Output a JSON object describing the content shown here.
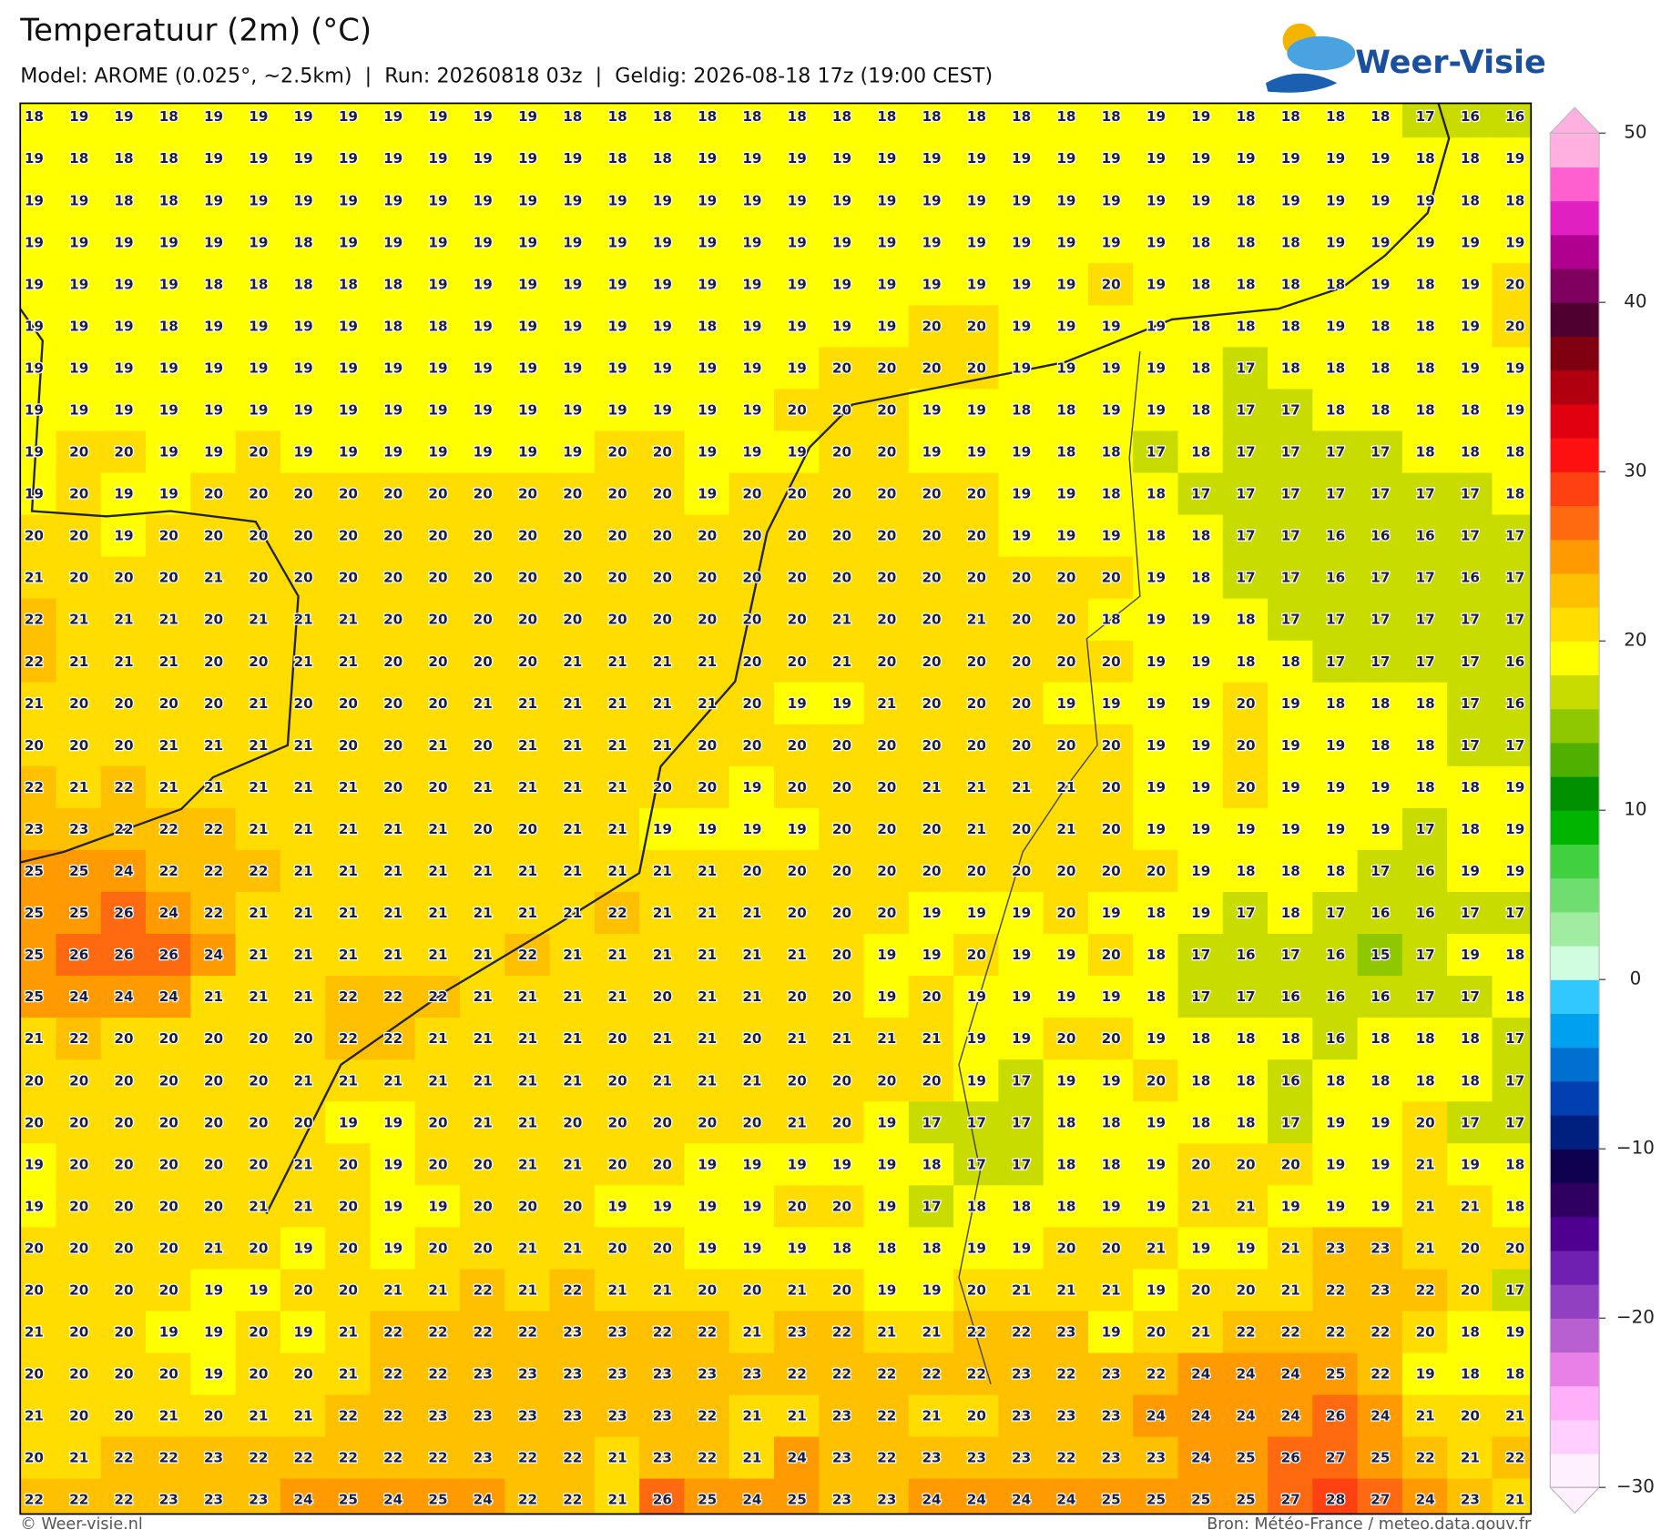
{
  "header": {
    "title": "Temperatuur (2m) (°C)",
    "subtitle": "Model: AROME (0.025°, ~2.5km)  |  Run: 20260818 03z  |  Geldig: 2026-08-18 17z (19:00 CEST)",
    "logo": "Weer-Visie"
  },
  "map": {
    "grid": [
      [
        18,
        19,
        19,
        18,
        19,
        19,
        19,
        19,
        19,
        19,
        19,
        19,
        18,
        18,
        18,
        18,
        18,
        18,
        18,
        18,
        18,
        18,
        18,
        18,
        18,
        19,
        19,
        18,
        18,
        18,
        18,
        17,
        16,
        16
      ],
      [
        19,
        18,
        18,
        18,
        19,
        19,
        19,
        19,
        19,
        19,
        19,
        19,
        19,
        18,
        18,
        19,
        19,
        19,
        19,
        19,
        19,
        19,
        19,
        19,
        19,
        19,
        19,
        19,
        19,
        19,
        19,
        18,
        18,
        19
      ],
      [
        19,
        19,
        18,
        18,
        19,
        19,
        19,
        19,
        19,
        19,
        19,
        19,
        19,
        19,
        19,
        19,
        19,
        19,
        19,
        19,
        19,
        19,
        19,
        19,
        19,
        19,
        19,
        18,
        19,
        19,
        19,
        19,
        18,
        18
      ],
      [
        19,
        19,
        19,
        19,
        19,
        19,
        18,
        19,
        19,
        19,
        19,
        19,
        19,
        19,
        19,
        19,
        19,
        19,
        19,
        19,
        19,
        19,
        19,
        19,
        19,
        19,
        18,
        18,
        18,
        19,
        19,
        19,
        19,
        19
      ],
      [
        19,
        19,
        19,
        19,
        18,
        18,
        18,
        18,
        18,
        19,
        19,
        19,
        19,
        19,
        19,
        19,
        19,
        19,
        19,
        19,
        19,
        19,
        19,
        19,
        20,
        19,
        18,
        18,
        18,
        18,
        19,
        18,
        19,
        20
      ],
      [
        19,
        19,
        19,
        18,
        19,
        19,
        19,
        19,
        18,
        18,
        19,
        19,
        19,
        19,
        19,
        18,
        19,
        19,
        19,
        19,
        20,
        20,
        19,
        19,
        19,
        19,
        18,
        18,
        18,
        19,
        18,
        18,
        19,
        20
      ],
      [
        19,
        19,
        19,
        19,
        19,
        19,
        19,
        19,
        19,
        19,
        19,
        19,
        19,
        19,
        19,
        19,
        19,
        19,
        20,
        20,
        20,
        20,
        19,
        19,
        19,
        19,
        18,
        17,
        18,
        18,
        18,
        18,
        19,
        19
      ],
      [
        19,
        19,
        19,
        19,
        19,
        19,
        19,
        19,
        19,
        19,
        19,
        19,
        19,
        19,
        19,
        19,
        19,
        20,
        20,
        20,
        19,
        19,
        18,
        18,
        19,
        19,
        18,
        17,
        17,
        18,
        18,
        18,
        18,
        19
      ],
      [
        19,
        20,
        20,
        19,
        19,
        20,
        19,
        19,
        19,
        19,
        19,
        19,
        19,
        20,
        20,
        19,
        19,
        19,
        20,
        20,
        19,
        19,
        19,
        18,
        18,
        17,
        18,
        17,
        17,
        17,
        17,
        18,
        18,
        18
      ],
      [
        19,
        20,
        19,
        19,
        20,
        20,
        20,
        20,
        20,
        20,
        20,
        20,
        20,
        20,
        20,
        19,
        20,
        20,
        20,
        20,
        20,
        20,
        19,
        19,
        18,
        18,
        17,
        17,
        17,
        17,
        17,
        17,
        17,
        18
      ],
      [
        20,
        20,
        19,
        20,
        20,
        20,
        20,
        20,
        20,
        20,
        20,
        20,
        20,
        20,
        20,
        20,
        20,
        20,
        20,
        20,
        20,
        20,
        19,
        19,
        19,
        18,
        18,
        17,
        17,
        16,
        16,
        16,
        17,
        17
      ],
      [
        21,
        20,
        20,
        20,
        21,
        20,
        20,
        20,
        20,
        20,
        20,
        20,
        20,
        20,
        20,
        20,
        20,
        20,
        20,
        20,
        20,
        20,
        20,
        20,
        20,
        19,
        18,
        17,
        17,
        16,
        17,
        17,
        16,
        17
      ],
      [
        22,
        21,
        21,
        21,
        20,
        21,
        21,
        21,
        20,
        20,
        20,
        20,
        20,
        20,
        20,
        20,
        20,
        20,
        21,
        20,
        20,
        21,
        20,
        20,
        18,
        19,
        19,
        18,
        17,
        17,
        17,
        17,
        17,
        17
      ],
      [
        22,
        21,
        21,
        21,
        20,
        20,
        21,
        21,
        20,
        20,
        20,
        20,
        21,
        21,
        21,
        21,
        20,
        20,
        21,
        20,
        20,
        20,
        20,
        20,
        20,
        19,
        19,
        18,
        18,
        17,
        17,
        17,
        17,
        16
      ],
      [
        21,
        20,
        20,
        20,
        20,
        21,
        20,
        20,
        20,
        20,
        21,
        21,
        21,
        21,
        21,
        21,
        20,
        19,
        19,
        21,
        20,
        20,
        20,
        19,
        19,
        19,
        19,
        20,
        19,
        18,
        18,
        18,
        17,
        16
      ],
      [
        20,
        20,
        20,
        21,
        21,
        21,
        21,
        20,
        20,
        21,
        20,
        21,
        21,
        21,
        21,
        20,
        20,
        20,
        20,
        20,
        20,
        20,
        20,
        20,
        20,
        19,
        19,
        20,
        19,
        19,
        18,
        18,
        17,
        17
      ],
      [
        22,
        21,
        22,
        21,
        21,
        21,
        21,
        21,
        20,
        20,
        21,
        21,
        21,
        21,
        20,
        20,
        19,
        20,
        20,
        20,
        21,
        21,
        21,
        21,
        20,
        19,
        19,
        20,
        19,
        19,
        19,
        18,
        18,
        19
      ],
      [
        23,
        23,
        22,
        22,
        22,
        21,
        21,
        21,
        21,
        21,
        20,
        20,
        21,
        21,
        19,
        19,
        19,
        19,
        20,
        20,
        20,
        21,
        20,
        21,
        20,
        19,
        19,
        19,
        19,
        19,
        19,
        17,
        18,
        19
      ],
      [
        25,
        25,
        24,
        22,
        22,
        22,
        21,
        21,
        21,
        21,
        21,
        21,
        21,
        21,
        21,
        21,
        20,
        20,
        20,
        20,
        20,
        20,
        20,
        20,
        20,
        20,
        19,
        18,
        18,
        18,
        17,
        16,
        19,
        19
      ],
      [
        25,
        25,
        26,
        24,
        22,
        21,
        21,
        21,
        21,
        21,
        21,
        21,
        21,
        22,
        21,
        21,
        21,
        20,
        20,
        20,
        19,
        19,
        19,
        20,
        19,
        18,
        19,
        17,
        18,
        17,
        16,
        16,
        17,
        17
      ],
      [
        25,
        26,
        26,
        26,
        24,
        21,
        21,
        21,
        21,
        21,
        21,
        22,
        21,
        21,
        21,
        21,
        21,
        21,
        20,
        19,
        19,
        20,
        19,
        19,
        20,
        18,
        17,
        16,
        17,
        16,
        15,
        17,
        19,
        18
      ],
      [
        25,
        24,
        24,
        24,
        21,
        21,
        21,
        22,
        22,
        22,
        21,
        21,
        21,
        21,
        20,
        21,
        21,
        20,
        20,
        19,
        20,
        19,
        19,
        19,
        19,
        18,
        17,
        17,
        16,
        16,
        16,
        17,
        17,
        18
      ],
      [
        21,
        22,
        20,
        20,
        20,
        20,
        20,
        22,
        22,
        21,
        21,
        21,
        21,
        20,
        21,
        21,
        20,
        21,
        21,
        21,
        21,
        19,
        19,
        20,
        20,
        19,
        18,
        18,
        18,
        16,
        18,
        18,
        18,
        17
      ],
      [
        20,
        20,
        20,
        20,
        20,
        20,
        21,
        21,
        21,
        21,
        21,
        21,
        21,
        20,
        21,
        21,
        21,
        20,
        20,
        20,
        20,
        19,
        17,
        19,
        19,
        20,
        18,
        18,
        16,
        18,
        18,
        18,
        18,
        17
      ],
      [
        20,
        20,
        20,
        20,
        20,
        20,
        20,
        19,
        19,
        20,
        21,
        21,
        20,
        20,
        20,
        20,
        20,
        21,
        20,
        19,
        17,
        17,
        17,
        18,
        18,
        19,
        18,
        18,
        17,
        19,
        19,
        20,
        17,
        17
      ],
      [
        19,
        20,
        20,
        20,
        20,
        20,
        21,
        20,
        19,
        20,
        20,
        21,
        21,
        20,
        20,
        19,
        19,
        19,
        19,
        19,
        18,
        17,
        17,
        18,
        18,
        19,
        20,
        20,
        20,
        19,
        19,
        21,
        19,
        18
      ],
      [
        19,
        20,
        20,
        20,
        20,
        21,
        21,
        20,
        19,
        19,
        20,
        20,
        20,
        19,
        19,
        19,
        19,
        20,
        20,
        19,
        17,
        18,
        18,
        18,
        19,
        19,
        21,
        21,
        19,
        19,
        19,
        21,
        21,
        18
      ],
      [
        20,
        20,
        20,
        20,
        21,
        20,
        19,
        20,
        19,
        20,
        20,
        21,
        21,
        20,
        20,
        19,
        19,
        19,
        18,
        18,
        18,
        19,
        19,
        20,
        20,
        21,
        19,
        19,
        21,
        23,
        23,
        21,
        20,
        20
      ],
      [
        20,
        20,
        20,
        20,
        19,
        19,
        20,
        20,
        21,
        21,
        22,
        21,
        22,
        21,
        21,
        20,
        20,
        21,
        20,
        19,
        19,
        20,
        21,
        21,
        21,
        19,
        20,
        20,
        21,
        22,
        23,
        22,
        20,
        17
      ],
      [
        21,
        20,
        20,
        19,
        19,
        20,
        19,
        21,
        22,
        22,
        22,
        22,
        23,
        23,
        22,
        22,
        21,
        23,
        22,
        21,
        21,
        22,
        22,
        23,
        19,
        20,
        21,
        22,
        22,
        22,
        22,
        20,
        18,
        19
      ],
      [
        20,
        20,
        20,
        20,
        19,
        20,
        20,
        21,
        22,
        22,
        23,
        23,
        23,
        23,
        23,
        23,
        23,
        22,
        22,
        22,
        22,
        22,
        23,
        22,
        23,
        22,
        24,
        24,
        24,
        25,
        22,
        19,
        18,
        18
      ],
      [
        21,
        20,
        20,
        21,
        20,
        21,
        21,
        22,
        22,
        23,
        23,
        23,
        23,
        23,
        23,
        22,
        21,
        21,
        23,
        22,
        21,
        20,
        23,
        23,
        23,
        24,
        24,
        24,
        24,
        26,
        24,
        21,
        20,
        21
      ],
      [
        20,
        21,
        22,
        22,
        23,
        22,
        22,
        22,
        22,
        22,
        23,
        22,
        22,
        21,
        23,
        22,
        21,
        24,
        23,
        22,
        23,
        23,
        23,
        22,
        23,
        23,
        24,
        25,
        26,
        27,
        25,
        22,
        21,
        22
      ],
      [
        22,
        22,
        22,
        23,
        23,
        23,
        24,
        25,
        24,
        25,
        24,
        22,
        22,
        21,
        26,
        25,
        24,
        25,
        23,
        23,
        24,
        24,
        24,
        24,
        25,
        25,
        25,
        25,
        27,
        28,
        27,
        24,
        23,
        21
      ]
    ]
  },
  "colorbar": {
    "lim": [
      -30,
      50
    ],
    "ticks": [
      50,
      40,
      30,
      20,
      10,
      0,
      {
        "value": -10,
        "label": "−10"
      },
      {
        "value": -20,
        "label": "−20"
      },
      {
        "value": -30,
        "label": "−30"
      }
    ],
    "colors": [
      "#fff0ff",
      "#ffd0ff",
      "#ffb0f8",
      "#e880e8",
      "#b860d0",
      "#9040c0",
      "#7020b0",
      "#500090",
      "#300060",
      "#100050",
      "#002080",
      "#0040b0",
      "#0070d0",
      "#00a0f0",
      "#30c8ff",
      "#d0fce0",
      "#a0eca0",
      "#70dd70",
      "#40d040",
      "#00b400",
      "#009000",
      "#50b000",
      "#90c800",
      "#c8dc00",
      "#ffff00",
      "#ffdd00",
      "#ffc000",
      "#ff9a00",
      "#ff6a10",
      "#ff4010",
      "#ff1010",
      "#e00010",
      "#b00010",
      "#800010",
      "#500030",
      "#800060",
      "#b0008f",
      "#e020c0",
      "#ff60d0",
      "#ffb0e0"
    ]
  },
  "footer": {
    "left": "© Weer-visie.nl",
    "right": "Bron: Météo-France / meteo.data.gouv.fr"
  }
}
